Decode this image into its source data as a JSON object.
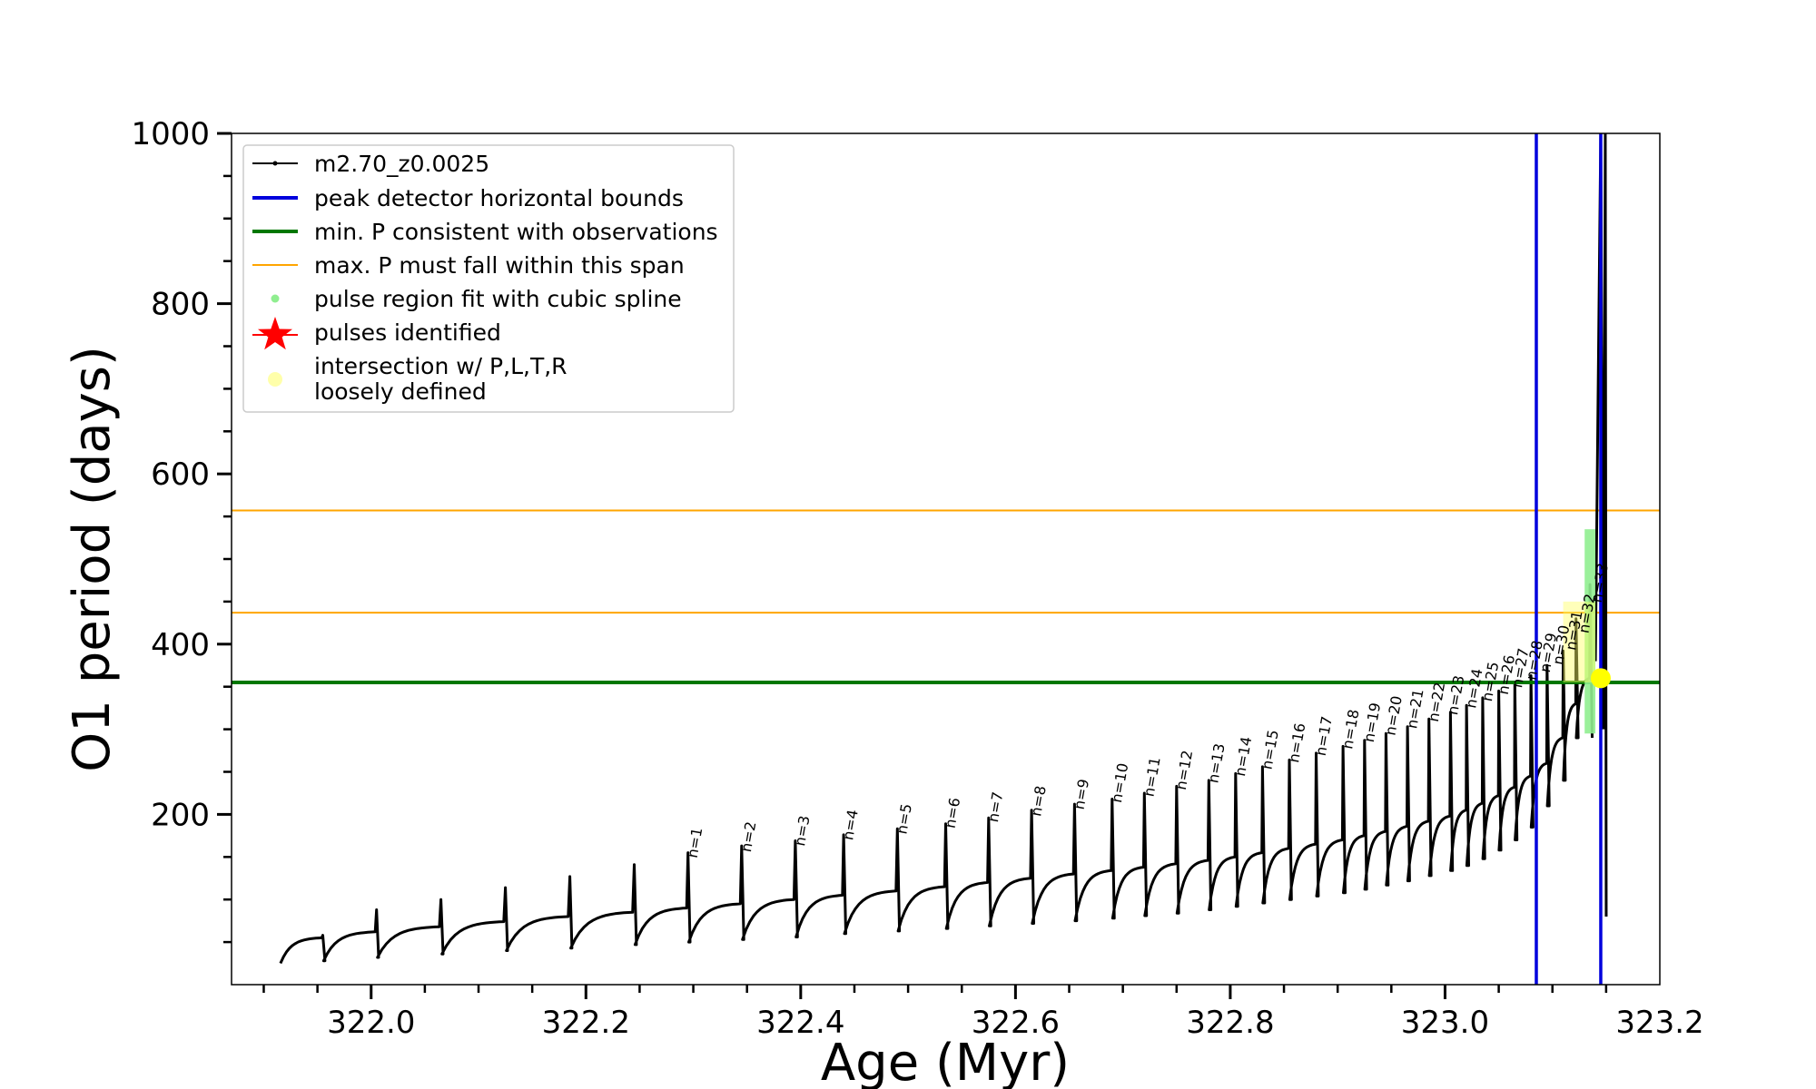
{
  "chart_data": {
    "type": "line",
    "xlabel": "Age (Myr)",
    "ylabel": "O1 period (days)",
    "xlim": [
      321.87,
      323.2
    ],
    "ylim": [
      0,
      1000
    ],
    "x_ticks": [
      {
        "value": 322.0,
        "label": "322.0"
      },
      {
        "value": 322.2,
        "label": "322.2"
      },
      {
        "value": 322.4,
        "label": "322.4"
      },
      {
        "value": 322.6,
        "label": "322.6"
      },
      {
        "value": 322.8,
        "label": "322.8"
      },
      {
        "value": 323.0,
        "label": "323.0"
      },
      {
        "value": 323.2,
        "label": "323.2"
      }
    ],
    "y_ticks": [
      {
        "value": 200,
        "label": "200"
      },
      {
        "value": 400,
        "label": "400"
      },
      {
        "value": 600,
        "label": "600"
      },
      {
        "value": 800,
        "label": "800"
      },
      {
        "value": 1000,
        "label": "1000"
      }
    ],
    "legend": {
      "placement": "upper-left",
      "entries": [
        {
          "label": "m2.70_z0.0025",
          "kind": "line-marker",
          "color": "#000000"
        },
        {
          "label": "peak detector horizontal bounds",
          "kind": "line",
          "color": "#0000dd"
        },
        {
          "label": "min. P consistent with observations",
          "kind": "line",
          "color": "#007700"
        },
        {
          "label": "max. P must fall within this span",
          "kind": "line-thin",
          "color": "#ffa500"
        },
        {
          "label": "pulse region fit with cubic spline",
          "kind": "dot",
          "color": "#90ee90"
        },
        {
          "label": "pulses identified",
          "kind": "star",
          "color": "#ff0000"
        },
        {
          "label": "intersection w/ P,L,T,R",
          "label2": "loosely defined",
          "kind": "dot",
          "color": "#ffffaa"
        }
      ]
    },
    "series": [
      {
        "name": "m2.70_z0.0025",
        "color": "#000000",
        "pulse_ages": [
          321.955,
          322.005,
          322.065,
          322.125,
          322.185,
          322.245,
          322.295,
          322.345,
          322.395,
          322.44,
          322.49,
          322.535,
          322.575,
          322.615,
          322.655,
          322.69,
          322.72,
          322.75,
          322.78,
          322.805,
          322.83,
          322.855,
          322.88,
          322.905,
          322.925,
          322.945,
          322.965,
          322.985,
          323.005,
          323.02,
          323.035,
          323.05,
          323.065,
          323.08,
          323.095,
          323.11,
          323.122,
          323.135
        ],
        "pulse_peaks": [
          58,
          88,
          100,
          114,
          127,
          141,
          155,
          163,
          169,
          176,
          183,
          189,
          196,
          205,
          212,
          218,
          225,
          233,
          240,
          248,
          256,
          264,
          272,
          280,
          287,
          295,
          303,
          312,
          320,
          328,
          337,
          345,
          355,
          363,
          375,
          392,
          430,
          470
        ],
        "baseline_min": [
          25,
          28,
          32,
          36,
          40,
          43,
          47,
          50,
          53,
          56,
          60,
          63,
          66,
          69,
          72,
          75,
          78,
          81,
          84,
          88,
          92,
          96,
          100,
          104,
          108,
          112,
          117,
          122,
          128,
          134,
          140,
          148,
          158,
          170,
          185,
          210,
          240,
          290
        ],
        "baseline_max": [
          55,
          62,
          68,
          74,
          80,
          85,
          90,
          95,
          100,
          105,
          110,
          115,
          120,
          125,
          130,
          134,
          138,
          142,
          146,
          150,
          155,
          160,
          165,
          170,
          175,
          180,
          186,
          192,
          198,
          205,
          213,
          222,
          232,
          245,
          260,
          290,
          330,
          360
        ]
      }
    ],
    "pulse_labels": [
      {
        "x": 322.3,
        "y": 148,
        "label": "n=1"
      },
      {
        "x": 322.35,
        "y": 155,
        "label": "n=2"
      },
      {
        "x": 322.4,
        "y": 162,
        "label": "n=3"
      },
      {
        "x": 322.445,
        "y": 169,
        "label": "n=4"
      },
      {
        "x": 322.495,
        "y": 176,
        "label": "n=5"
      },
      {
        "x": 322.54,
        "y": 183,
        "label": "n=6"
      },
      {
        "x": 322.58,
        "y": 190,
        "label": "n=7"
      },
      {
        "x": 322.62,
        "y": 197,
        "label": "n=8"
      },
      {
        "x": 322.66,
        "y": 205,
        "label": "n=9"
      },
      {
        "x": 322.695,
        "y": 213,
        "label": "n=10"
      },
      {
        "x": 322.725,
        "y": 220,
        "label": "n=11"
      },
      {
        "x": 322.755,
        "y": 228,
        "label": "n=12"
      },
      {
        "x": 322.785,
        "y": 236,
        "label": "n=13"
      },
      {
        "x": 322.81,
        "y": 244,
        "label": "n=14"
      },
      {
        "x": 322.835,
        "y": 252,
        "label": "n=15"
      },
      {
        "x": 322.86,
        "y": 260,
        "label": "n=16"
      },
      {
        "x": 322.885,
        "y": 268,
        "label": "n=17"
      },
      {
        "x": 322.91,
        "y": 276,
        "label": "n=18"
      },
      {
        "x": 322.93,
        "y": 284,
        "label": "n=19"
      },
      {
        "x": 322.95,
        "y": 292,
        "label": "n=20"
      },
      {
        "x": 322.97,
        "y": 300,
        "label": "n=21"
      },
      {
        "x": 322.99,
        "y": 308,
        "label": "n=22"
      },
      {
        "x": 323.008,
        "y": 316,
        "label": "n=23"
      },
      {
        "x": 323.025,
        "y": 324,
        "label": "n=24"
      },
      {
        "x": 323.04,
        "y": 332,
        "label": "n=25"
      },
      {
        "x": 323.055,
        "y": 340,
        "label": "n=26"
      },
      {
        "x": 323.068,
        "y": 348,
        "label": "n=27"
      },
      {
        "x": 323.081,
        "y": 357,
        "label": "n=28"
      },
      {
        "x": 323.094,
        "y": 366,
        "label": "n=29"
      },
      {
        "x": 323.106,
        "y": 375,
        "label": "n=30"
      },
      {
        "x": 323.118,
        "y": 392,
        "label": "n=31"
      },
      {
        "x": 323.13,
        "y": 412,
        "label": "n=32"
      },
      {
        "x": 323.142,
        "y": 448,
        "label": "n=33"
      }
    ],
    "vlines_blue": [
      323.085,
      323.145
    ],
    "hline_green": 355,
    "hlines_orange": [
      437,
      557
    ],
    "spline_region": {
      "x": [
        323.13,
        323.14
      ],
      "y": [
        295,
        535
      ]
    },
    "intersection": {
      "x": 323.145,
      "y": 360
    }
  }
}
